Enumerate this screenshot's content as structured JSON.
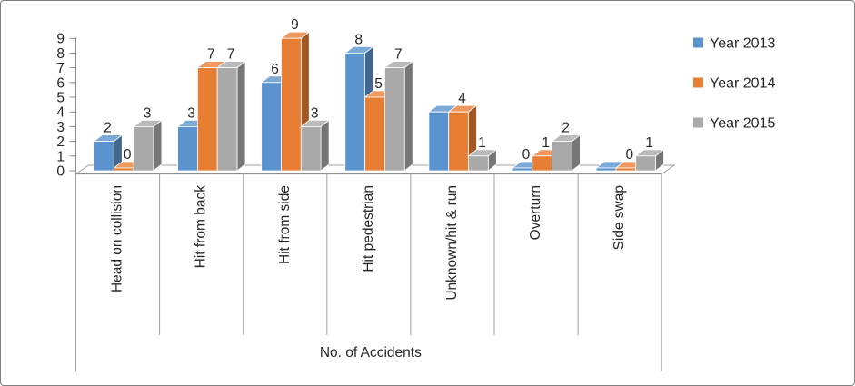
{
  "chart_data": {
    "type": "bar",
    "variant": "3d-column",
    "title": "",
    "xlabel": "No. of Accidents",
    "ylabel": "",
    "ylim": [
      0,
      9
    ],
    "y_ticks": [
      "0",
      "1",
      "2",
      "3",
      "4",
      "5",
      "6",
      "7",
      "8",
      "9"
    ],
    "grid": false,
    "legend_position": "right",
    "categories": [
      "Head on collision",
      "Hit from back",
      "Hit from side",
      "Hit pedestrian",
      "Unknown/hit & run",
      "Overturn",
      "Side swap"
    ],
    "series": [
      {
        "name": "Year 2013",
        "color": "#5B93CE",
        "values": [
          2,
          3,
          6,
          8,
          4,
          0,
          0
        ]
      },
      {
        "name": "Year 2014",
        "color": "#E87E33",
        "values": [
          0,
          7,
          9,
          5,
          4,
          1,
          0
        ]
      },
      {
        "name": "Year 2015",
        "color": "#A9A9A9",
        "values": [
          3,
          7,
          3,
          7,
          1,
          2,
          1
        ]
      }
    ],
    "visible_data_labels": [
      [
        "2",
        "0",
        "3"
      ],
      [
        "3",
        "7",
        "7"
      ],
      [
        "6",
        "9",
        "3"
      ],
      [
        "8",
        "5",
        "7"
      ],
      [
        "",
        "4",
        "1"
      ],
      [
        "0",
        "1",
        "2"
      ],
      [
        "",
        "0",
        "1"
      ]
    ]
  },
  "frame": {
    "border_color": "#808080",
    "background": "#ffffff"
  },
  "axis_colors": {
    "line": "#8F8F8F",
    "separator": "#A0A0A0",
    "text": "#262626"
  }
}
